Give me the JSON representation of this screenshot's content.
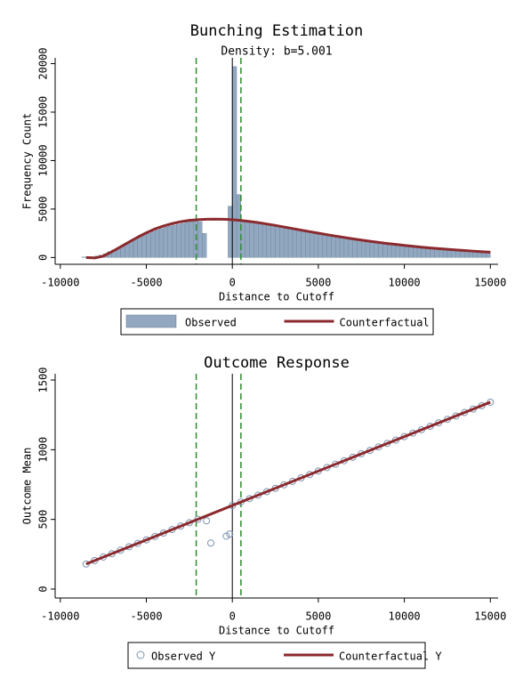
{
  "chart_data": [
    {
      "type": "histogram",
      "title": "Bunching Estimation",
      "subtitle": "Density: b=5.001",
      "x_label": "Distance to Cutoff",
      "y_label": "Frequency Count",
      "xlim": [
        -10300,
        15450
      ],
      "xticks": [
        -10000,
        -5000,
        0,
        5000,
        10000,
        15000
      ],
      "ylim": [
        -700,
        20600
      ],
      "yticks": [
        0,
        5000,
        10000,
        15000,
        20000
      ],
      "vlines": [
        {
          "value": 0,
          "color": "#000000",
          "style": "solid"
        },
        {
          "value": -2100,
          "color": "#2e8b2e",
          "style": "dashed"
        },
        {
          "value": 500,
          "color": "#2e8b2e",
          "style": "dashed"
        }
      ],
      "series": [
        {
          "name": "Observed",
          "type": "histogram",
          "color": "#92a8c0",
          "bins": [
            -8750,
            -8500,
            -8250,
            -8000,
            -7750,
            -7500,
            -7250,
            -7000,
            -6750,
            -6500,
            -6250,
            -6000,
            -5750,
            -5500,
            -5250,
            -5000,
            -4750,
            -4500,
            -4250,
            -4000,
            -3750,
            -3500,
            -3250,
            -3000,
            -2750,
            -2500,
            -2250,
            -2000,
            -1750,
            -1500,
            -1250,
            -1000,
            -750,
            -500,
            -250,
            0,
            250,
            500,
            750,
            1000,
            1250,
            1500,
            1750,
            2000,
            2250,
            2500,
            2750,
            3000,
            3250,
            3500,
            3750,
            4000,
            4250,
            4500,
            4750,
            5000,
            5250,
            5500,
            5750,
            6000,
            6250,
            6500,
            6750,
            7000,
            7250,
            7500,
            7750,
            8000,
            8250,
            8500,
            8750,
            9000,
            9250,
            9500,
            9750,
            10000,
            10250,
            10500,
            10750,
            11000,
            11250,
            11500,
            11750,
            12000,
            12250,
            12500,
            12750,
            13000,
            13250,
            13500,
            13750,
            14000,
            14250,
            14500,
            14750,
            15000
          ],
          "values": [
            50,
            60,
            80,
            150,
            250,
            400,
            600,
            800,
            1000,
            1250,
            1450,
            1700,
            1900,
            2100,
            2300,
            2500,
            2700,
            2850,
            3000,
            3150,
            3250,
            3350,
            3450,
            3550,
            3650,
            3700,
            3750,
            3700,
            2500,
            0,
            0,
            0,
            0,
            0,
            5300,
            19700,
            6500,
            3750,
            3700,
            3650,
            3600,
            3520,
            3450,
            3380,
            3300,
            3220,
            3140,
            3060,
            2980,
            2900,
            2820,
            2740,
            2660,
            2580,
            2500,
            2420,
            2350,
            2280,
            2200,
            2130,
            2060,
            1990,
            1920,
            1860,
            1800,
            1740,
            1680,
            1620,
            1560,
            1500,
            1450,
            1400,
            1350,
            1300,
            1250,
            1200,
            1160,
            1120,
            1080,
            1040,
            1000,
            960,
            920,
            880,
            850,
            820,
            790,
            760,
            730,
            700,
            670,
            640,
            610,
            580,
            550
          ]
        },
        {
          "name": "Counterfactual",
          "type": "line",
          "color": "#8b2a2e",
          "x": [
            -8500,
            -8000,
            -7500,
            -7000,
            -6500,
            -6000,
            -5500,
            -5000,
            -4500,
            -4000,
            -3500,
            -3000,
            -2500,
            -2000,
            -1500,
            -1000,
            -500,
            0,
            500,
            1000,
            1500,
            2000,
            2500,
            3000,
            3500,
            4000,
            4500,
            5000,
            5500,
            6000,
            6500,
            7000,
            7500,
            8000,
            8500,
            9000,
            9500,
            10000,
            10500,
            11000,
            11500,
            12000,
            12500,
            13000,
            13500,
            14000,
            14500,
            15000
          ],
          "values": [
            0,
            -50,
            150,
            600,
            1100,
            1600,
            2100,
            2550,
            2950,
            3250,
            3500,
            3700,
            3830,
            3900,
            3950,
            3960,
            3950,
            3900,
            3820,
            3720,
            3600,
            3460,
            3310,
            3150,
            2990,
            2830,
            2670,
            2510,
            2360,
            2210,
            2070,
            1930,
            1800,
            1680,
            1560,
            1450,
            1350,
            1250,
            1160,
            1070,
            990,
            920,
            850,
            780,
            720,
            660,
            600,
            550
          ]
        }
      ]
    },
    {
      "type": "scatter",
      "title": "Outcome Response",
      "x_label": "Distance to Cutoff",
      "y_label": "Outcome Mean",
      "xlim": [
        -10300,
        15450
      ],
      "xticks": [
        -10000,
        -5000,
        0,
        5000,
        10000,
        15000
      ],
      "ylim": [
        -64,
        1545
      ],
      "yticks": [
        0,
        500,
        1000,
        1500
      ],
      "vlines": [
        {
          "value": 0,
          "color": "#000000",
          "style": "solid"
        },
        {
          "value": -2100,
          "color": "#2e8b2e",
          "style": "dashed"
        },
        {
          "value": 500,
          "color": "#2e8b2e",
          "style": "dashed"
        }
      ],
      "series": [
        {
          "name": "Observed Y",
          "type": "scatter",
          "color": "#7d93b1",
          "x": [
            -8500,
            -8000,
            -7500,
            -7000,
            -6500,
            -6000,
            -5500,
            -5000,
            -4500,
            -4000,
            -3500,
            -3000,
            -2500,
            -2000,
            -1500,
            -1250,
            -350,
            -150,
            0,
            500,
            1000,
            1500,
            2000,
            2500,
            3000,
            3500,
            4000,
            4500,
            5000,
            5500,
            6000,
            6500,
            7000,
            7500,
            8000,
            8500,
            9000,
            9500,
            10000,
            10500,
            11000,
            11500,
            12000,
            12500,
            13000,
            13500,
            14000,
            14500,
            15000
          ],
          "values": [
            180,
            205,
            230,
            254,
            279,
            304,
            328,
            353,
            378,
            402,
            427,
            452,
            476,
            501,
            490,
            330,
            380,
            395,
            600,
            625,
            649,
            674,
            699,
            723,
            748,
            773,
            798,
            822,
            847,
            872,
            896,
            921,
            946,
            971,
            995,
            1020,
            1045,
            1069,
            1094,
            1119,
            1143,
            1168,
            1193,
            1218,
            1242,
            1267,
            1292,
            1316,
            1341
          ]
        },
        {
          "name": "Counterfactual Y",
          "type": "line",
          "color": "#8b2a2e",
          "x": [
            -8500,
            15000
          ],
          "values": [
            180,
            1341
          ]
        }
      ]
    }
  ]
}
